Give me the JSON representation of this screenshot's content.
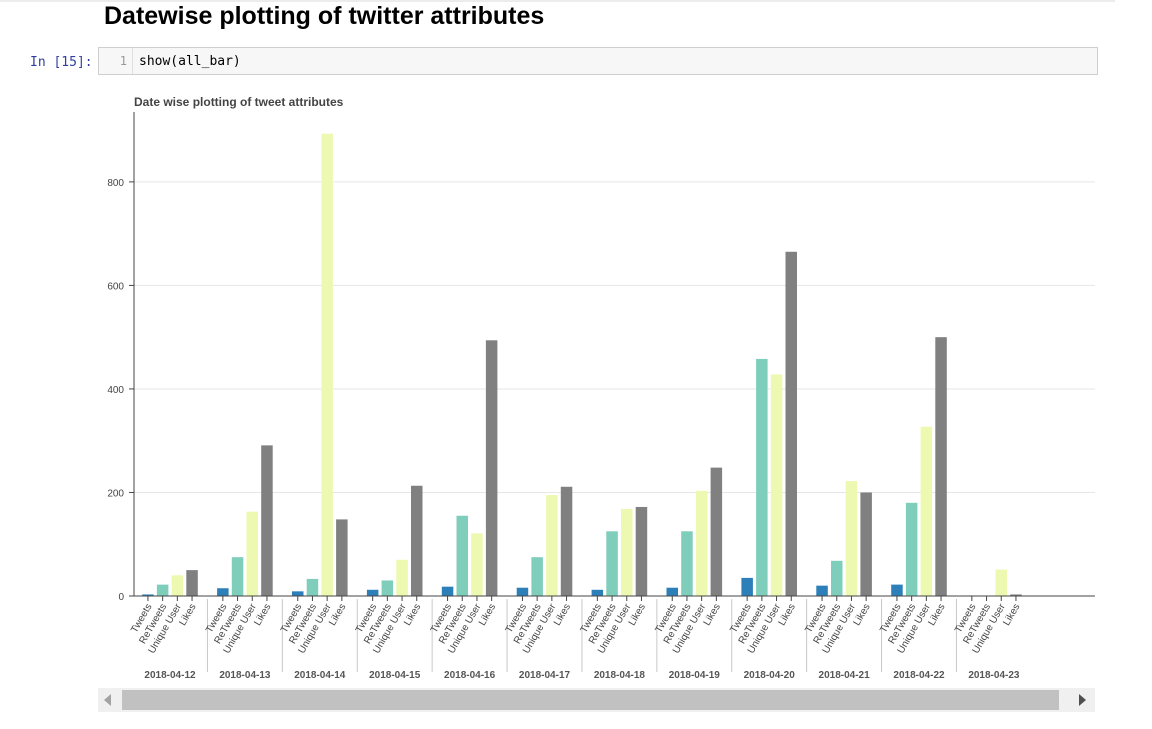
{
  "notebook": {
    "heading": "Datewise plotting of twitter attributes",
    "prompt": "In [15]:",
    "line_number": "1",
    "code": "show(all_bar)"
  },
  "colors": {
    "Tweets": "#2c7fb8",
    "ReTweets": "#7fcdbb",
    "Unique User": "#edf8b1",
    "Likes": "#808080"
  },
  "chart_data": {
    "type": "bar",
    "title": "Date wise plotting of tweet attributes",
    "xlabel": "",
    "ylabel": "",
    "ylim": [
      0,
      935
    ],
    "yticks": [
      0,
      200,
      400,
      600,
      800
    ],
    "grid": true,
    "legend": "none",
    "categories": [
      "2018-04-12",
      "2018-04-13",
      "2018-04-14",
      "2018-04-15",
      "2018-04-16",
      "2018-04-17",
      "2018-04-18",
      "2018-04-19",
      "2018-04-20",
      "2018-04-21",
      "2018-04-22",
      "2018-04-23"
    ],
    "subcategories": [
      "Tweets",
      "ReTweets",
      "Unique User",
      "Likes"
    ],
    "series": [
      {
        "name": "Tweets",
        "values": [
          3,
          15,
          9,
          12,
          18,
          16,
          12,
          16,
          35,
          20,
          22,
          1
        ]
      },
      {
        "name": "ReTweets",
        "values": [
          22,
          75,
          33,
          30,
          155,
          75,
          125,
          125,
          458,
          68,
          180,
          0
        ]
      },
      {
        "name": "Unique User",
        "values": [
          40,
          163,
          893,
          70,
          121,
          195,
          168,
          203,
          428,
          222,
          327,
          51
        ]
      },
      {
        "name": "Likes",
        "values": [
          50,
          291,
          148,
          213,
          494,
          211,
          172,
          248,
          665,
          200,
          500,
          3
        ]
      }
    ]
  }
}
